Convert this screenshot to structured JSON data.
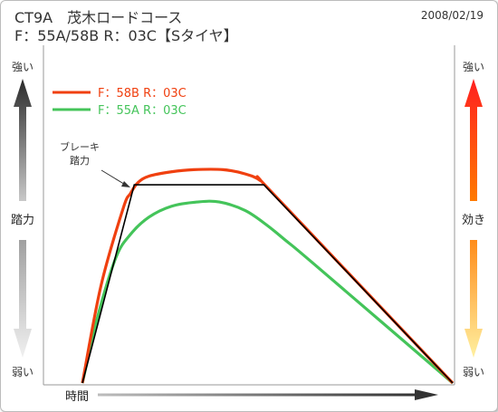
{
  "header": {
    "title_line1": "CT9A　茂木ロードコース",
    "title_line2": "F：55A/58B  R：03C【Sタイヤ】",
    "date": "2008/02/19"
  },
  "colors": {
    "series_58b": "#f04010",
    "series_55a": "#44c45a",
    "pedal_line": "#000000"
  },
  "chart_data": {
    "type": "line",
    "title": "",
    "xlabel": "時間",
    "ylabel_left": "踏力",
    "ylabel_right": "効き",
    "left_axis": {
      "top": "強い",
      "bottom": "弱い"
    },
    "right_axis": {
      "top": "強い",
      "bottom": "弱い"
    },
    "legend_position": "top-left",
    "annotation": {
      "line1": "ブレーキ",
      "line2": "踏力"
    },
    "xlim": [
      0,
      100
    ],
    "ylim": [
      0,
      100
    ],
    "pedal_force": [
      [
        0,
        0
      ],
      [
        14,
        92
      ],
      [
        49,
        92
      ],
      [
        100,
        0
      ]
    ],
    "series": [
      {
        "name": "F：58B  R：03C",
        "color": "#f04010",
        "points": [
          [
            0,
            0
          ],
          [
            5,
            45
          ],
          [
            11,
            81
          ],
          [
            13,
            88
          ],
          [
            15,
            93
          ],
          [
            18,
            96
          ],
          [
            24,
            98
          ],
          [
            30,
            99
          ],
          [
            38,
            99
          ],
          [
            44,
            97
          ],
          [
            48,
            94
          ],
          [
            52,
            87
          ],
          [
            100,
            0
          ]
        ]
      },
      {
        "name": "F：55A  R：03C",
        "color": "#44c45a",
        "points": [
          [
            0,
            0
          ],
          [
            4,
            30
          ],
          [
            9,
            58
          ],
          [
            13,
            69
          ],
          [
            18,
            77
          ],
          [
            24,
            82
          ],
          [
            31,
            84
          ],
          [
            37,
            84
          ],
          [
            44,
            80
          ],
          [
            50,
            73
          ],
          [
            55,
            66
          ],
          [
            62,
            56
          ],
          [
            100,
            0
          ]
        ]
      }
    ]
  }
}
